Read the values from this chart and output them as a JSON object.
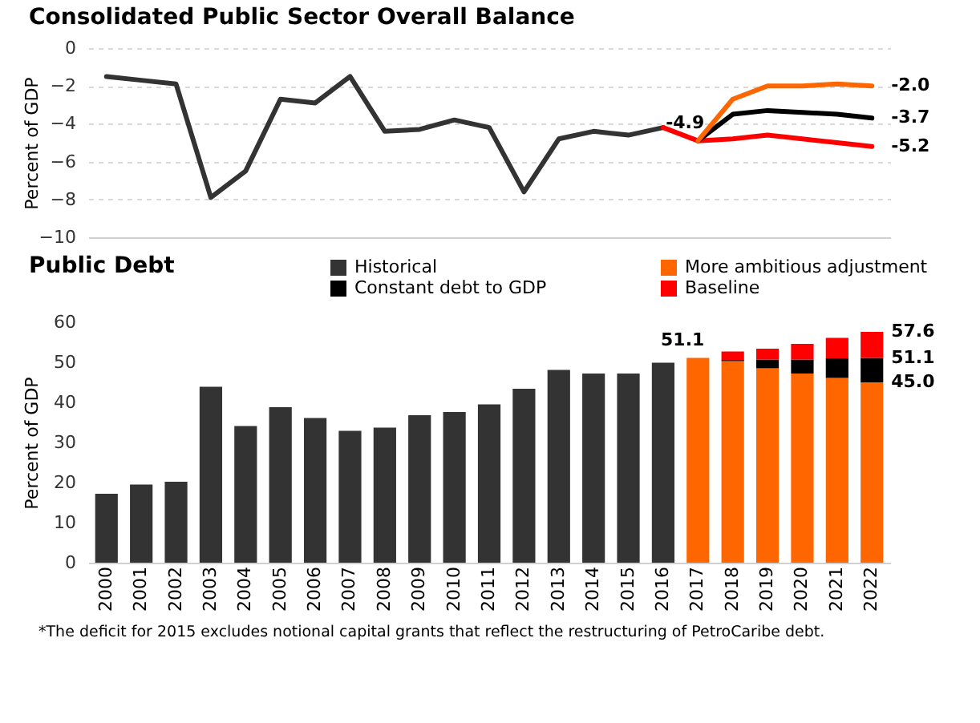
{
  "chart_data": [
    {
      "type": "line",
      "title": "Consolidated Public Sector Overall Balance",
      "ylabel": "Percent of GDP",
      "categories": [
        "2000",
        "2001",
        "2002",
        "2003",
        "2004",
        "2005",
        "2006",
        "2007",
        "2008",
        "2009",
        "2010",
        "2011",
        "2012",
        "2013",
        "2014",
        "2015",
        "2016",
        "2017",
        "2018",
        "2019",
        "2020",
        "2021",
        "2022"
      ],
      "series": [
        {
          "color": "#333333",
          "values": [
            -1.5,
            -1.7,
            -1.9,
            -7.9,
            -6.5,
            -2.7,
            -2.9,
            -1.5,
            -4.4,
            -4.3,
            -3.8,
            -4.2,
            -7.6,
            -4.8,
            -4.4,
            -4.6,
            -4.2,
            null,
            null,
            null,
            null,
            null,
            null
          ]
        },
        {
          "color": "#ff0000",
          "values": [
            null,
            null,
            null,
            null,
            null,
            null,
            null,
            null,
            null,
            null,
            null,
            null,
            null,
            null,
            null,
            null,
            -4.2,
            -4.9,
            -4.8,
            -4.6,
            -4.8,
            -5.0,
            -5.2
          ]
        },
        {
          "color": "#000000",
          "values": [
            null,
            null,
            null,
            null,
            null,
            null,
            null,
            null,
            null,
            null,
            null,
            null,
            null,
            null,
            null,
            null,
            null,
            -4.9,
            -3.5,
            -3.3,
            -3.4,
            -3.5,
            -3.7
          ]
        },
        {
          "color": "#ff6600",
          "values": [
            null,
            null,
            null,
            null,
            null,
            null,
            null,
            null,
            null,
            null,
            null,
            null,
            null,
            null,
            null,
            null,
            null,
            -4.9,
            -2.7,
            -2.0,
            -2.0,
            -1.9,
            -2.0
          ]
        }
      ],
      "ylim": [
        -10,
        0
      ],
      "yticks": [
        0,
        -2,
        -4,
        -6,
        -8,
        -10
      ],
      "grid": "y",
      "tick_labels": "y",
      "line_style": "solid",
      "annotations": [
        {
          "text": "-4.9",
          "x": "2017",
          "y": -4.9
        },
        {
          "text": "-2.0",
          "x": "2022",
          "y": -2.0
        },
        {
          "text": "-3.7",
          "x": "2022",
          "y": -3.7
        },
        {
          "text": "-5.2",
          "x": "2022",
          "y": -5.2
        }
      ]
    },
    {
      "type": "bar",
      "title": "Public Debt",
      "ylabel": "Percent of GDP",
      "stacked": true,
      "legend": "top",
      "categories": [
        "2000",
        "2001",
        "2002",
        "2003",
        "2004",
        "2005",
        "2006",
        "2007",
        "2008",
        "2009",
        "2010",
        "2011",
        "2012",
        "2013",
        "2014",
        "2015",
        "2016",
        "2017",
        "2018",
        "2019",
        "2020",
        "2021",
        "2022"
      ],
      "series": [
        {
          "name": "Historical",
          "color": "#333333",
          "values": [
            17.2,
            19.5,
            20.2,
            43.9,
            34.1,
            38.8,
            36.1,
            32.9,
            33.7,
            36.8,
            37.6,
            39.5,
            43.4,
            48.1,
            47.2,
            47.2,
            49.9,
            null,
            null,
            null,
            null,
            null,
            null
          ]
        },
        {
          "name": "More ambitious adjustment",
          "color": "#ff6600",
          "values": [
            null,
            null,
            null,
            null,
            null,
            null,
            null,
            null,
            null,
            null,
            null,
            null,
            null,
            null,
            null,
            null,
            null,
            51.1,
            50.3,
            48.5,
            47.2,
            46.1,
            45.0
          ]
        },
        {
          "name": "Constant debt to GDP",
          "color": "#000000",
          "values": [
            null,
            null,
            null,
            null,
            null,
            null,
            null,
            null,
            null,
            null,
            null,
            null,
            null,
            null,
            null,
            null,
            null,
            null,
            0.3,
            2.2,
            3.5,
            4.9,
            6.1
          ]
        },
        {
          "name": "Baseline",
          "color": "#ff0000",
          "values": [
            null,
            null,
            null,
            null,
            null,
            null,
            null,
            null,
            null,
            null,
            null,
            null,
            null,
            null,
            null,
            null,
            null,
            null,
            2.1,
            2.7,
            3.9,
            5.1,
            6.5
          ]
        }
      ],
      "ylim": [
        0,
        60
      ],
      "yticks": [
        0,
        10,
        20,
        30,
        40,
        50,
        60
      ],
      "annotations": [
        {
          "text": "51.1",
          "x": "2017",
          "y": 51.1
        },
        {
          "text": "57.6",
          "x": "2022",
          "y": 57.6
        },
        {
          "text": "51.1",
          "x": "2022",
          "y": 51.1
        },
        {
          "text": "45.0",
          "x": "2022",
          "y": 45.0
        },
        "*The deficit for 2015 excludes notional capital grants that reflect the restructuring of PetroCaribe debt."
      ]
    }
  ]
}
